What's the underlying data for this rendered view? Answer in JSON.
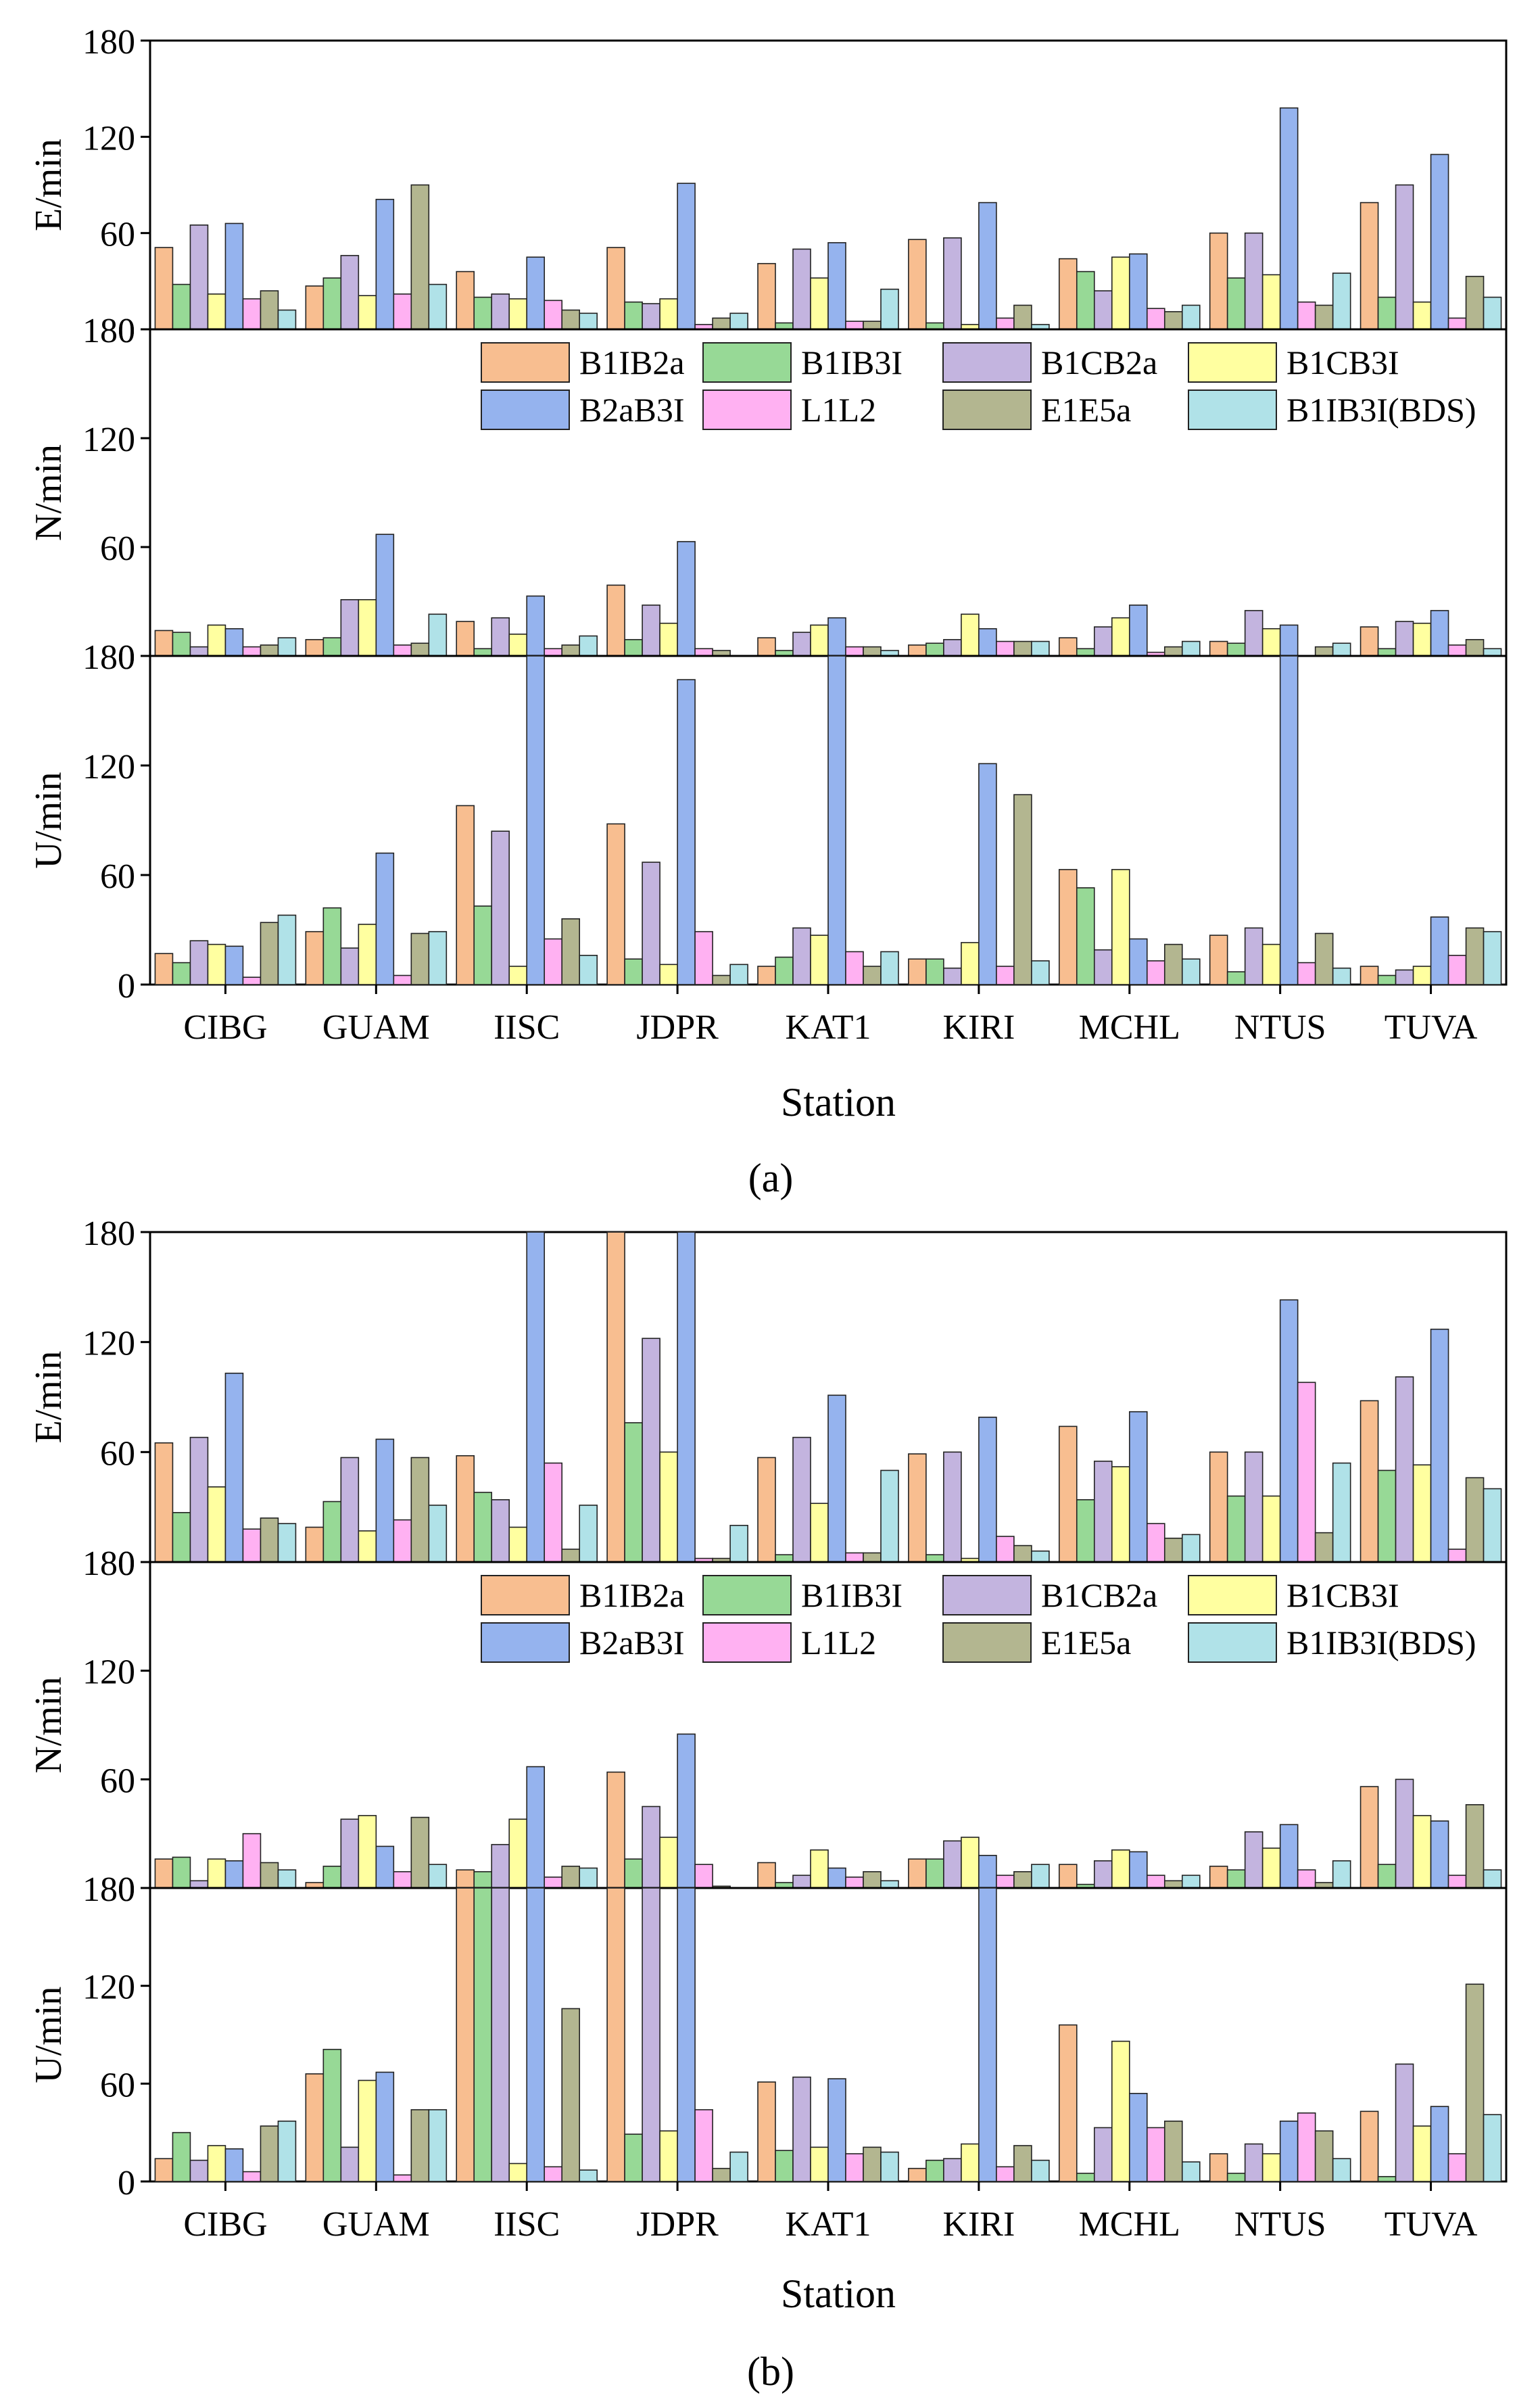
{
  "figure": {
    "panel_labels": [
      "(a)",
      "(b)"
    ],
    "series_colors": [
      "#F8BE90",
      "#97D996",
      "#C3B4DF",
      "#FFFFA0",
      "#95B3EE",
      "#FFB1F2",
      "#B3B690",
      "#B0E2E8"
    ]
  },
  "chart_data": [
    {
      "type": "bar",
      "panel": "a",
      "component": "E",
      "categories": [
        "CIBG",
        "GUAM",
        "IISC",
        "JDPR",
        "KAT1",
        "KIRI",
        "MCHL",
        "NTUS",
        "TUVA"
      ],
      "ylabel": "E/min",
      "xlabel": "",
      "ylim": [
        0,
        180
      ],
      "yticks": [
        0,
        60,
        120,
        180
      ],
      "legend": null,
      "series": [
        {
          "name": "B1IB2a",
          "values": [
            51,
            27,
            36,
            51,
            41,
            56,
            44,
            60,
            79
          ]
        },
        {
          "name": "B1IB3I",
          "values": [
            28,
            32,
            20,
            17,
            4,
            4,
            36,
            32,
            20
          ]
        },
        {
          "name": "B1CB2a",
          "values": [
            65,
            46,
            22,
            16,
            50,
            57,
            24,
            60,
            90
          ]
        },
        {
          "name": "B1CB3I",
          "values": [
            22,
            21,
            19,
            19,
            32,
            3,
            45,
            34,
            17
          ]
        },
        {
          "name": "B2aB3I",
          "values": [
            66,
            81,
            45,
            91,
            54,
            79,
            47,
            138,
            109
          ]
        },
        {
          "name": "L1L2",
          "values": [
            19,
            22,
            18,
            3,
            5,
            7,
            13,
            17,
            7
          ]
        },
        {
          "name": "E1E5a",
          "values": [
            24,
            90,
            12,
            7,
            5,
            15,
            11,
            15,
            33
          ]
        },
        {
          "name": "B1IB3I(BDS)",
          "values": [
            12,
            28,
            10,
            10,
            25,
            3,
            15,
            35,
            20
          ]
        }
      ]
    },
    {
      "type": "bar",
      "panel": "a",
      "component": "N",
      "categories": [
        "CIBG",
        "GUAM",
        "IISC",
        "JDPR",
        "KAT1",
        "KIRI",
        "MCHL",
        "NTUS",
        "TUVA"
      ],
      "ylabel": "N/min",
      "xlabel": "",
      "ylim": [
        0,
        180
      ],
      "yticks": [
        0,
        60,
        120,
        180
      ],
      "legend": "top-right",
      "series": [
        {
          "name": "B1IB2a",
          "values": [
            14,
            9,
            19,
            39,
            10,
            6,
            10,
            8,
            16
          ]
        },
        {
          "name": "B1IB3I",
          "values": [
            13,
            10,
            4,
            9,
            3,
            7,
            4,
            7,
            4
          ]
        },
        {
          "name": "B1CB2a",
          "values": [
            5,
            31,
            21,
            28,
            13,
            9,
            16,
            25,
            19
          ]
        },
        {
          "name": "B1CB3I",
          "values": [
            17,
            31,
            12,
            18,
            17,
            23,
            21,
            15,
            18
          ]
        },
        {
          "name": "B2aB3I",
          "values": [
            15,
            67,
            33,
            63,
            21,
            15,
            28,
            17,
            25
          ]
        },
        {
          "name": "L1L2",
          "values": [
            5,
            6,
            4,
            4,
            5,
            8,
            2,
            0,
            6
          ]
        },
        {
          "name": "E1E5a",
          "values": [
            6,
            7,
            6,
            3,
            5,
            8,
            5,
            5,
            9
          ]
        },
        {
          "name": "B1IB3I(BDS)",
          "values": [
            10,
            23,
            11,
            0,
            3,
            8,
            8,
            7,
            4
          ]
        }
      ]
    },
    {
      "type": "bar",
      "panel": "a",
      "component": "U",
      "categories": [
        "CIBG",
        "GUAM",
        "IISC",
        "JDPR",
        "KAT1",
        "KIRI",
        "MCHL",
        "NTUS",
        "TUVA"
      ],
      "ylabel": "U/min",
      "xlabel": "Station",
      "ylim": [
        0,
        180
      ],
      "yticks": [
        0,
        60,
        120,
        180
      ],
      "legend": null,
      "series": [
        {
          "name": "B1IB2a",
          "values": [
            17,
            29,
            98,
            88,
            10,
            14,
            63,
            27,
            10
          ]
        },
        {
          "name": "B1IB3I",
          "values": [
            12,
            42,
            43,
            14,
            15,
            14,
            53,
            7,
            5
          ]
        },
        {
          "name": "B1CB2a",
          "values": [
            24,
            20,
            84,
            67,
            31,
            9,
            19,
            31,
            8
          ]
        },
        {
          "name": "B1CB3I",
          "values": [
            22,
            33,
            10,
            11,
            27,
            23,
            63,
            22,
            10
          ]
        },
        {
          "name": "B2aB3I",
          "values": [
            21,
            72,
            180,
            167,
            180,
            121,
            25,
            180,
            37
          ]
        },
        {
          "name": "L1L2",
          "values": [
            4,
            5,
            25,
            29,
            18,
            10,
            13,
            12,
            16
          ]
        },
        {
          "name": "E1E5a",
          "values": [
            34,
            28,
            36,
            5,
            10,
            104,
            22,
            28,
            31
          ]
        },
        {
          "name": "B1IB3I(BDS)",
          "values": [
            38,
            29,
            16,
            11,
            18,
            13,
            14,
            9,
            29
          ]
        }
      ]
    },
    {
      "type": "bar",
      "panel": "b",
      "component": "E",
      "categories": [
        "CIBG",
        "GUAM",
        "IISC",
        "JDPR",
        "KAT1",
        "KIRI",
        "MCHL",
        "NTUS",
        "TUVA"
      ],
      "ylabel": "E/min",
      "xlabel": "",
      "ylim": [
        0,
        180
      ],
      "yticks": [
        0,
        60,
        120,
        180
      ],
      "legend": null,
      "series": [
        {
          "name": "B1IB2a",
          "values": [
            65,
            19,
            58,
            180,
            57,
            59,
            74,
            60,
            88
          ]
        },
        {
          "name": "B1IB3I",
          "values": [
            27,
            33,
            38,
            76,
            4,
            4,
            34,
            36,
            50
          ]
        },
        {
          "name": "B1CB2a",
          "values": [
            68,
            57,
            34,
            122,
            68,
            60,
            55,
            60,
            101
          ]
        },
        {
          "name": "B1CB3I",
          "values": [
            41,
            17,
            19,
            60,
            32,
            2,
            52,
            36,
            53
          ]
        },
        {
          "name": "B2aB3I",
          "values": [
            103,
            67,
            180,
            180,
            91,
            79,
            82,
            143,
            127
          ]
        },
        {
          "name": "L1L2",
          "values": [
            18,
            23,
            54,
            2,
            5,
            14,
            21,
            98,
            7
          ]
        },
        {
          "name": "E1E5a",
          "values": [
            24,
            57,
            7,
            2,
            5,
            9,
            13,
            16,
            46
          ]
        },
        {
          "name": "B1IB3I(BDS)",
          "values": [
            21,
            31,
            31,
            20,
            50,
            6,
            15,
            54,
            40
          ]
        }
      ]
    },
    {
      "type": "bar",
      "panel": "b",
      "component": "N",
      "categories": [
        "CIBG",
        "GUAM",
        "IISC",
        "JDPR",
        "KAT1",
        "KIRI",
        "MCHL",
        "NTUS",
        "TUVA"
      ],
      "ylabel": "N/min",
      "xlabel": "",
      "ylim": [
        0,
        180
      ],
      "yticks": [
        0,
        60,
        120,
        180
      ],
      "legend": "top-right",
      "series": [
        {
          "name": "B1IB2a",
          "values": [
            16,
            3,
            10,
            64,
            14,
            16,
            13,
            12,
            56
          ]
        },
        {
          "name": "B1IB3I",
          "values": [
            17,
            12,
            9,
            16,
            3,
            16,
            2,
            10,
            13
          ]
        },
        {
          "name": "B1CB2a",
          "values": [
            4,
            38,
            24,
            45,
            7,
            26,
            15,
            31,
            60
          ]
        },
        {
          "name": "B1CB3I",
          "values": [
            16,
            40,
            38,
            28,
            21,
            28,
            21,
            22,
            40
          ]
        },
        {
          "name": "B2aB3I",
          "values": [
            15,
            23,
            67,
            85,
            11,
            18,
            20,
            35,
            37
          ]
        },
        {
          "name": "L1L2",
          "values": [
            30,
            9,
            6,
            13,
            6,
            7,
            7,
            10,
            7
          ]
        },
        {
          "name": "E1E5a",
          "values": [
            14,
            39,
            12,
            1,
            9,
            9,
            4,
            3,
            46
          ]
        },
        {
          "name": "B1IB3I(BDS)",
          "values": [
            10,
            13,
            11,
            0,
            4,
            13,
            7,
            15,
            10
          ]
        }
      ]
    },
    {
      "type": "bar",
      "panel": "b",
      "component": "U",
      "categories": [
        "CIBG",
        "GUAM",
        "IISC",
        "JDPR",
        "KAT1",
        "KIRI",
        "MCHL",
        "NTUS",
        "TUVA"
      ],
      "ylabel": "U/min",
      "xlabel": "Station",
      "ylim": [
        0,
        180
      ],
      "yticks": [
        0,
        60,
        120,
        180
      ],
      "legend": null,
      "series": [
        {
          "name": "B1IB2a",
          "values": [
            14,
            66,
            180,
            180,
            61,
            8,
            96,
            17,
            43
          ]
        },
        {
          "name": "B1IB3I",
          "values": [
            30,
            81,
            180,
            29,
            19,
            13,
            5,
            5,
            3
          ]
        },
        {
          "name": "B1CB2a",
          "values": [
            13,
            21,
            180,
            180,
            64,
            14,
            33,
            23,
            72
          ]
        },
        {
          "name": "B1CB3I",
          "values": [
            22,
            62,
            11,
            31,
            21,
            23,
            86,
            17,
            34
          ]
        },
        {
          "name": "B2aB3I",
          "values": [
            20,
            67,
            180,
            180,
            63,
            180,
            54,
            37,
            46
          ]
        },
        {
          "name": "L1L2",
          "values": [
            6,
            4,
            9,
            44,
            17,
            9,
            33,
            42,
            17
          ]
        },
        {
          "name": "E1E5a",
          "values": [
            34,
            44,
            106,
            8,
            21,
            22,
            37,
            31,
            121
          ]
        },
        {
          "name": "B1IB3I(BDS)",
          "values": [
            37,
            44,
            7,
            18,
            18,
            13,
            12,
            14,
            41
          ]
        }
      ]
    }
  ]
}
